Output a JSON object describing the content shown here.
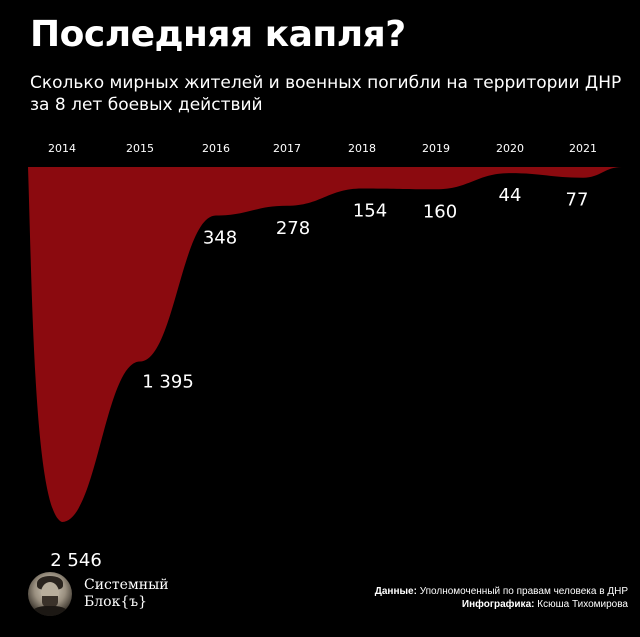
{
  "header": {
    "title": "Последняя капля?",
    "subtitle": "Сколько мирных жителей и военных погибли на территории ДНР за 8 лет боевых действий"
  },
  "colors": {
    "background": "#000000",
    "area": "#8b0a0f",
    "text": "#ffffff"
  },
  "chart_data": {
    "type": "area",
    "title": "Последняя капля?",
    "categories": [
      "2014",
      "2015",
      "2016",
      "2017",
      "2018",
      "2019",
      "2020",
      "2021"
    ],
    "values": [
      2546,
      1395,
      348,
      278,
      154,
      160,
      44,
      77
    ],
    "value_labels": [
      "2 546",
      "1 395",
      "348",
      "278",
      "154",
      "160",
      "44",
      "77"
    ],
    "ylim": [
      0,
      2546
    ],
    "orientation": "inverted-downward",
    "grid": false,
    "legend": "none"
  },
  "footer": {
    "logo_line1": "Системный",
    "logo_line2": "Блок{ъ}",
    "source_label": "Данные:",
    "source_value": "Уполномоченный по правам человека в ДНР",
    "credit_label": "Инфографика:",
    "credit_value": "Ксюша Тихомирова"
  }
}
